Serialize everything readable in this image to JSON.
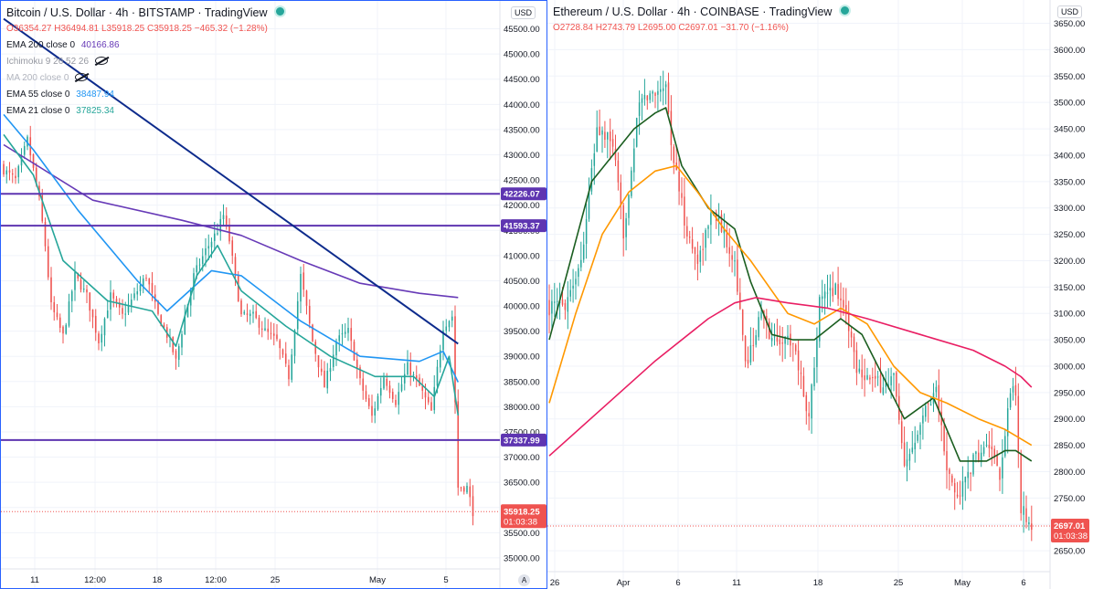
{
  "colors": {
    "up": "#26a69a",
    "down": "#ef5350",
    "grid": "#f0f3fa",
    "ema200": "#673ab7",
    "ema55": "#2196f3",
    "ema21": "#26a69a",
    "eth_fast": "#1b5e20",
    "eth_mid": "#ff9800",
    "eth_slow": "#e91e63",
    "trendline": "#0d2b8c",
    "hline": "#5e35b1"
  },
  "btc": {
    "title": "Bitcoin / U.S. Dollar · 4h · BITSTAMP · TradingView",
    "ohlc": "O36354.27 H36494.81 L35918.25 C35918.25 −465.32 (−1.28%)",
    "indicators": [
      {
        "label": "EMA 200 close 0",
        "value": "40166.86",
        "color": "#673ab7"
      },
      {
        "label": "Ichimoku 9 26 52 26",
        "value": "",
        "color": "#9598a1",
        "hidden": true
      },
      {
        "label": "MA 200 close 0",
        "value": "",
        "color": "#b2b5be",
        "hidden": true
      },
      {
        "label": "EMA 55 close 0",
        "value": "38487.94",
        "color": "#2196f3"
      },
      {
        "label": "EMA 21 close 0",
        "value": "37825.34",
        "color": "#26a69a"
      }
    ],
    "currency_button": "USD",
    "auto_button": "A",
    "price_label": "35918.25",
    "countdown": "01:03:38",
    "level_labels": [
      "42226.07",
      "41593.37",
      "37337.99"
    ],
    "x_ticks": [
      "11",
      "12:00",
      "18",
      "12:00",
      "25",
      "May",
      "5"
    ]
  },
  "eth": {
    "title": "Ethereum / U.S. Dollar · 4h · COINBASE · TradingView",
    "ohlc": "O2728.84 H2743.79 L2695.00 C2697.01 −31.70 (−1.16%)",
    "currency_button": "USD",
    "price_label": "2697.01",
    "countdown": "01:03:38",
    "x_ticks": [
      "26",
      "Apr",
      "6",
      "11",
      "18",
      "25",
      "May",
      "6"
    ]
  },
  "chart_data": [
    {
      "type": "candlestick",
      "title": "Bitcoin / U.S. Dollar · 4h · BITSTAMP",
      "ylim": [
        34600,
        45800
      ],
      "y_ticks": [
        35000,
        35500,
        36000,
        36500,
        37000,
        37500,
        38000,
        38500,
        39000,
        39500,
        40000,
        40500,
        41000,
        41500,
        42000,
        42500,
        43000,
        43500,
        44000,
        44500,
        45000,
        45500
      ],
      "close_anchors": [
        [
          0,
          42700
        ],
        [
          4,
          42500
        ],
        [
          8,
          43300
        ],
        [
          12,
          42100
        ],
        [
          14,
          41200
        ],
        [
          16,
          40000
        ],
        [
          20,
          39400
        ],
        [
          24,
          40600
        ],
        [
          28,
          40200
        ],
        [
          32,
          39300
        ],
        [
          36,
          40200
        ],
        [
          40,
          39800
        ],
        [
          44,
          40200
        ],
        [
          48,
          40600
        ],
        [
          52,
          39800
        ],
        [
          56,
          39300
        ],
        [
          58,
          38900
        ],
        [
          60,
          39500
        ],
        [
          64,
          40600
        ],
        [
          68,
          41100
        ],
        [
          72,
          41500
        ],
        [
          74,
          41800
        ],
        [
          76,
          41300
        ],
        [
          80,
          39800
        ],
        [
          84,
          39800
        ],
        [
          88,
          39500
        ],
        [
          92,
          39300
        ],
        [
          96,
          38600
        ],
        [
          100,
          40600
        ],
        [
          104,
          39300
        ],
        [
          108,
          38400
        ],
        [
          112,
          39300
        ],
        [
          116,
          39500
        ],
        [
          120,
          38500
        ],
        [
          124,
          37800
        ],
        [
          128,
          38600
        ],
        [
          132,
          38100
        ],
        [
          136,
          38800
        ],
        [
          140,
          38400
        ],
        [
          144,
          37900
        ],
        [
          148,
          39600
        ],
        [
          151,
          39800
        ],
        [
          153,
          36400
        ],
        [
          156,
          36400
        ],
        [
          158,
          35918
        ]
      ],
      "horizontal_levels": [
        42226.07,
        41593.37,
        37337.99
      ],
      "trendline": [
        [
          0,
          45700
        ],
        [
          153,
          39250
        ]
      ],
      "current_price": 35918.25,
      "series": [
        {
          "name": "EMA 200 close 0",
          "last": 40166.86,
          "points": [
            [
              0,
              43200
            ],
            [
              30,
              42100
            ],
            [
              60,
              41700
            ],
            [
              80,
              41400
            ],
            [
              100,
              40900
            ],
            [
              120,
              40450
            ],
            [
              140,
              40250
            ],
            [
              153,
              40166.86
            ]
          ]
        },
        {
          "name": "EMA 55 close 0",
          "last": 38487.94,
          "points": [
            [
              0,
              43800
            ],
            [
              10,
              43100
            ],
            [
              25,
              41900
            ],
            [
              45,
              40500
            ],
            [
              55,
              39900
            ],
            [
              70,
              40700
            ],
            [
              80,
              40600
            ],
            [
              100,
              39700
            ],
            [
              120,
              39000
            ],
            [
              140,
              38900
            ],
            [
              148,
              39100
            ],
            [
              153,
              38487.94
            ]
          ]
        },
        {
          "name": "EMA 21 close 0",
          "last": 37825.34,
          "points": [
            [
              0,
              43400
            ],
            [
              10,
              42600
            ],
            [
              20,
              40900
            ],
            [
              35,
              40100
            ],
            [
              50,
              39900
            ],
            [
              58,
              39200
            ],
            [
              65,
              40600
            ],
            [
              72,
              41200
            ],
            [
              80,
              40300
            ],
            [
              95,
              39600
            ],
            [
              110,
              39000
            ],
            [
              125,
              38600
            ],
            [
              138,
              38600
            ],
            [
              145,
              38200
            ],
            [
              150,
              39000
            ],
            [
              153,
              37825.34
            ]
          ]
        }
      ]
    },
    {
      "type": "candlestick",
      "title": "Ethereum / U.S. Dollar · 4h · COINBASE",
      "ylim": [
        2600,
        3670
      ],
      "y_ticks": [
        2650,
        2700,
        2750,
        2800,
        2850,
        2900,
        2950,
        3000,
        3050,
        3100,
        3150,
        3200,
        3250,
        3300,
        3350,
        3400,
        3450,
        3500,
        3550,
        3600,
        3650
      ],
      "close_anchors": [
        [
          0,
          3110
        ],
        [
          6,
          3120
        ],
        [
          12,
          3200
        ],
        [
          18,
          3450
        ],
        [
          24,
          3420
        ],
        [
          28,
          3250
        ],
        [
          34,
          3500
        ],
        [
          40,
          3520
        ],
        [
          44,
          3540
        ],
        [
          46,
          3420
        ],
        [
          52,
          3250
        ],
        [
          56,
          3200
        ],
        [
          62,
          3300
        ],
        [
          66,
          3250
        ],
        [
          70,
          3200
        ],
        [
          74,
          3000
        ],
        [
          80,
          3100
        ],
        [
          84,
          3050
        ],
        [
          92,
          3050
        ],
        [
          98,
          2900
        ],
        [
          102,
          3120
        ],
        [
          108,
          3150
        ],
        [
          112,
          3100
        ],
        [
          116,
          3000
        ],
        [
          120,
          2980
        ],
        [
          126,
          2960
        ],
        [
          130,
          2980
        ],
        [
          134,
          2800
        ],
        [
          140,
          2900
        ],
        [
          146,
          2960
        ],
        [
          150,
          2800
        ],
        [
          154,
          2750
        ],
        [
          160,
          2820
        ],
        [
          166,
          2850
        ],
        [
          170,
          2780
        ],
        [
          174,
          2960
        ],
        [
          176,
          2940
        ],
        [
          178,
          2730
        ],
        [
          182,
          2697.01
        ]
      ],
      "current_price": 2697.01,
      "series": [
        {
          "name": "",
          "points": [
            [
              0,
              3050
            ],
            [
              8,
              3200
            ],
            [
              16,
              3350
            ],
            [
              24,
              3400
            ],
            [
              32,
              3450
            ],
            [
              40,
              3480
            ],
            [
              44,
              3490
            ],
            [
              50,
              3380
            ],
            [
              60,
              3300
            ],
            [
              70,
              3260
            ],
            [
              76,
              3160
            ],
            [
              84,
              3060
            ],
            [
              92,
              3050
            ],
            [
              100,
              3050
            ],
            [
              110,
              3090
            ],
            [
              118,
              3060
            ],
            [
              126,
              2980
            ],
            [
              134,
              2900
            ],
            [
              145,
              2940
            ],
            [
              155,
              2820
            ],
            [
              165,
              2820
            ],
            [
              172,
              2840
            ],
            [
              176,
              2840
            ],
            [
              182,
              2820
            ]
          ]
        },
        {
          "name": "",
          "points": [
            [
              0,
              2930
            ],
            [
              10,
              3100
            ],
            [
              20,
              3250
            ],
            [
              30,
              3330
            ],
            [
              40,
              3370
            ],
            [
              48,
              3380
            ],
            [
              56,
              3330
            ],
            [
              66,
              3260
            ],
            [
              76,
              3200
            ],
            [
              90,
              3100
            ],
            [
              100,
              3080
            ],
            [
              110,
              3110
            ],
            [
              120,
              3080
            ],
            [
              130,
              3000
            ],
            [
              140,
              2950
            ],
            [
              150,
              2930
            ],
            [
              162,
              2900
            ],
            [
              172,
              2880
            ],
            [
              182,
              2850
            ]
          ]
        },
        {
          "name": "",
          "points": [
            [
              0,
              2830
            ],
            [
              20,
              2920
            ],
            [
              40,
              3010
            ],
            [
              60,
              3090
            ],
            [
              70,
              3120
            ],
            [
              78,
              3130
            ],
            [
              90,
              3120
            ],
            [
              105,
              3110
            ],
            [
              120,
              3090
            ],
            [
              140,
              3060
            ],
            [
              160,
              3030
            ],
            [
              172,
              3000
            ],
            [
              178,
              2980
            ],
            [
              182,
              2960
            ]
          ]
        }
      ]
    }
  ]
}
